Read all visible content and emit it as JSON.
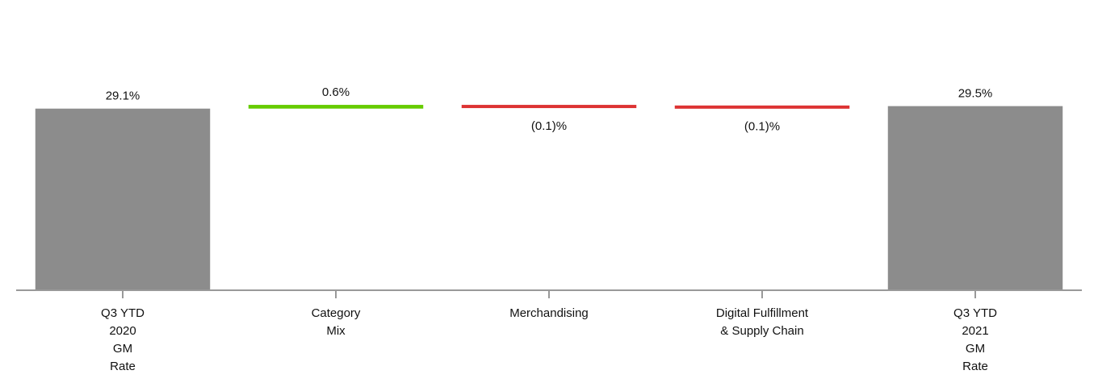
{
  "chart_data": {
    "type": "waterfall",
    "categories": [
      [
        "Q3 YTD",
        "2020",
        "GM",
        "Rate"
      ],
      [
        "Category",
        "Mix"
      ],
      [
        "Merchandising"
      ],
      [
        "Digital Fulfillment",
        "& Supply Chain"
      ],
      [
        "Q3 YTD",
        "2021",
        "GM",
        "Rate"
      ]
    ],
    "measures": [
      "total",
      "relative",
      "relative",
      "relative",
      "total"
    ],
    "values": [
      29.1,
      0.6,
      -0.1,
      -0.1,
      29.5
    ],
    "value_labels": [
      "29.1%",
      "0.6%",
      "(0.1)%",
      "(0.1)%",
      "29.5%"
    ],
    "colors": {
      "total": "#8c8c8c",
      "increase": "#66cc00",
      "decrease": "#dd3333"
    },
    "ylim": [
      0,
      31
    ]
  }
}
